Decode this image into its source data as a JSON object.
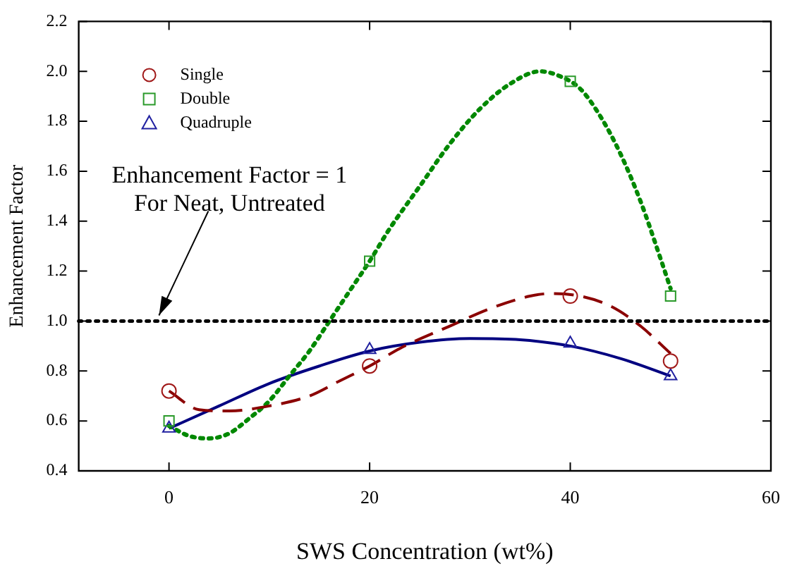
{
  "chart_data": {
    "type": "scatter",
    "xlabel": "SWS Concentration (wt%)",
    "ylabel": "Enhancement Factor",
    "x": [
      0,
      20,
      40,
      50
    ],
    "xlim": [
      -9,
      60
    ],
    "xticks": [
      0,
      20,
      40,
      60
    ],
    "ylim": [
      0.4,
      2.2
    ],
    "yticks": [
      0.4,
      0.6,
      0.8,
      {
        "value": 1,
        "label": "1.0"
      },
      1.2,
      1.4,
      1.6,
      1.8,
      {
        "value": 2,
        "label": "2.0"
      },
      2.2
    ],
    "grid": false,
    "legend": "top left",
    "series": [
      {
        "name": "Single",
        "color": "#a01818",
        "marker": "circle",
        "values": [
          0.72,
          0.82,
          1.1,
          0.84
        ]
      },
      {
        "name": "Double",
        "color": "#2a9a2a",
        "marker": "square",
        "values": [
          0.6,
          1.24,
          1.96,
          1.1
        ]
      },
      {
        "name": "Quadruple",
        "color": "#2020a0",
        "marker": "triangle",
        "values": [
          0.57,
          0.885,
          0.91,
          0.78
        ]
      },
      {
        "type": "line",
        "color": "#8b0000",
        "line_style": "dashed",
        "marker": "none",
        "x": [
          0,
          3,
          6,
          10,
          14,
          17,
          20,
          23,
          28,
          32,
          36,
          38,
          41,
          44,
          47,
          50
        ],
        "values": [
          0.72,
          0.645,
          0.64,
          0.66,
          0.7,
          0.76,
          0.82,
          0.89,
          0.98,
          1.05,
          1.1,
          1.11,
          1.1,
          1.06,
          0.98,
          0.87
        ]
      },
      {
        "type": "line",
        "color": "#008800",
        "line_style": "dotted",
        "marker": "none",
        "x": [
          0,
          2,
          4,
          6,
          8,
          10,
          12,
          14,
          16,
          18,
          20,
          22,
          25,
          28,
          31,
          34,
          37,
          39,
          41,
          43,
          45,
          47,
          49,
          50
        ],
        "values": [
          0.58,
          0.54,
          0.53,
          0.55,
          0.61,
          0.68,
          0.78,
          0.88,
          1.0,
          1.12,
          1.24,
          1.37,
          1.54,
          1.71,
          1.85,
          1.95,
          2.0,
          1.98,
          1.93,
          1.82,
          1.67,
          1.48,
          1.25,
          1.13
        ]
      },
      {
        "type": "line",
        "color": "#000080",
        "line_style": "solid",
        "marker": "none",
        "x": [
          0,
          5,
          10,
          15,
          20,
          25,
          30,
          35,
          40,
          45,
          50
        ],
        "values": [
          0.57,
          0.66,
          0.75,
          0.82,
          0.88,
          0.915,
          0.93,
          0.925,
          0.9,
          0.85,
          0.78
        ]
      }
    ],
    "ref_lines": [
      {
        "axis": "y",
        "value": 1,
        "color": "#000000",
        "line_style": "dotted"
      }
    ],
    "annotations": [
      {
        "text": "Enhancement Factor = 1\nFor Neat, Untreated",
        "x": -1,
        "y": 1
      }
    ]
  }
}
